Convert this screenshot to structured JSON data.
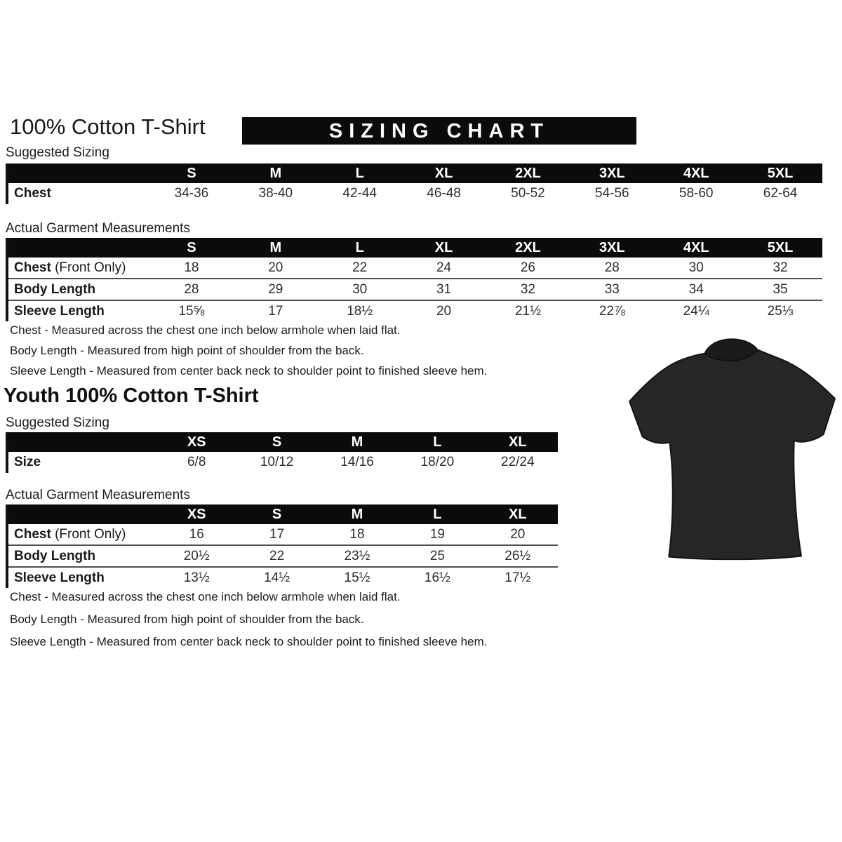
{
  "header": {
    "title": "100% Cotton T-Shirt",
    "banner": "SIZING CHART"
  },
  "adult": {
    "suggested_label": "Suggested Sizing",
    "suggested": {
      "columns": [
        "S",
        "M",
        "L",
        "XL",
        "2XL",
        "3XL",
        "4XL",
        "5XL"
      ],
      "rows": [
        {
          "label": "Chest",
          "suffix": "",
          "values": [
            "34-36",
            "38-40",
            "42-44",
            "46-48",
            "50-52",
            "54-56",
            "58-60",
            "62-64"
          ]
        }
      ]
    },
    "actual_label": "Actual Garment Measurements",
    "actual": {
      "columns": [
        "S",
        "M",
        "L",
        "XL",
        "2XL",
        "3XL",
        "4XL",
        "5XL"
      ],
      "rows": [
        {
          "label": "Chest",
          "suffix": " (Front Only)",
          "values": [
            "18",
            "20",
            "22",
            "24",
            "26",
            "28",
            "30",
            "32"
          ]
        },
        {
          "label": "Body Length",
          "suffix": "",
          "values": [
            "28",
            "29",
            "30",
            "31",
            "32",
            "33",
            "34",
            "35"
          ]
        },
        {
          "label": "Sleeve Length",
          "suffix": "",
          "values": [
            "15⅝",
            "17",
            "18½",
            "20",
            "21½",
            "22⅞",
            "24¼",
            "25⅓"
          ]
        }
      ]
    },
    "notes": [
      "Chest - Measured across the chest one inch below armhole when laid flat.",
      "Body Length - Measured from high point of shoulder from the back.",
      "Sleeve Length - Measured from center back neck to shoulder point to finished sleeve hem."
    ]
  },
  "youth": {
    "title": "Youth 100% Cotton T-Shirt",
    "suggested_label": "Suggested Sizing",
    "suggested": {
      "columns": [
        "XS",
        "S",
        "M",
        "L",
        "XL"
      ],
      "rows": [
        {
          "label": "Size",
          "suffix": "",
          "values": [
            "6/8",
            "10/12",
            "14/16",
            "18/20",
            "22/24"
          ]
        }
      ]
    },
    "actual_label": "Actual Garment Measurements",
    "actual": {
      "columns": [
        "XS",
        "S",
        "M",
        "L",
        "XL"
      ],
      "rows": [
        {
          "label": "Chest",
          "suffix": " (Front Only)",
          "values": [
            "16",
            "17",
            "18",
            "19",
            "20"
          ]
        },
        {
          "label": "Body Length",
          "suffix": "",
          "values": [
            "20½",
            "22",
            "23½",
            "25",
            "26½"
          ]
        },
        {
          "label": "Sleeve Length",
          "suffix": "",
          "values": [
            "13½",
            "14½",
            "15½",
            "16½",
            "17½"
          ]
        }
      ]
    },
    "notes": [
      "Chest - Measured across the chest one inch below armhole when laid flat.",
      "Body Length - Measured from high point of shoulder from the back.",
      "Sleeve Length - Measured from center back neck to shoulder point to finished sleeve hem."
    ]
  },
  "tshirt": {
    "icon": "black-tshirt",
    "fill": "#262626",
    "collar": "#1b1b1b",
    "outline": "#141414"
  },
  "colors": {
    "header_bar": "#0b0b0b",
    "header_text": "#ffffff",
    "body_text": "#1f1f1f",
    "row_separator": "#4f4f4f"
  }
}
